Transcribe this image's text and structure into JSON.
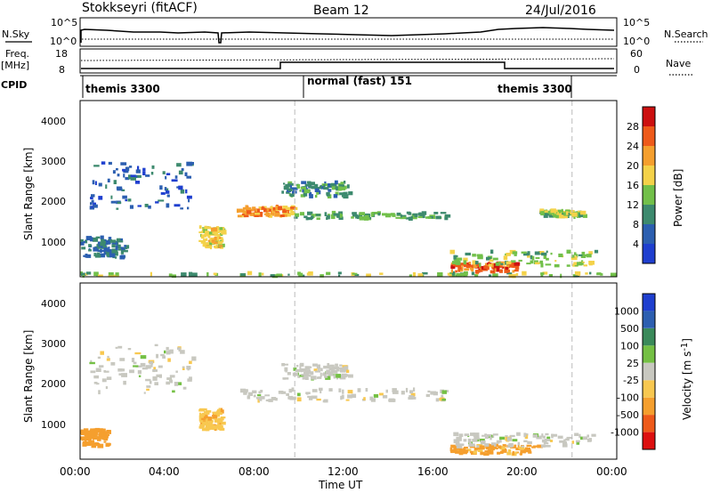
{
  "header": {
    "station": "Stokkseyri (fitACF)",
    "beam": "Beam 12",
    "date": "24/Jul/2016"
  },
  "noise_panel": {
    "left_label": "N.Sky",
    "right_label": "N.Search",
    "left_ticks": [
      "10^5",
      "10^0"
    ],
    "right_ticks": [
      "10^5",
      "10^0"
    ]
  },
  "freq_panel": {
    "left_label_1": "Freq.",
    "left_label_2": "[MHz]",
    "right_label": "Nave",
    "left_ticks": [
      "18",
      "8"
    ],
    "right_ticks": [
      "60",
      "0"
    ]
  },
  "cpid": {
    "label": "CPID",
    "segments": [
      "themis 3300",
      "normal (fast) 151",
      "themis 3300"
    ],
    "boundaries_hours": [
      0,
      9.6,
      22.0,
      24
    ]
  },
  "power_panel": {
    "ylabel": "Slant Range [km]",
    "yticks": [
      "1000",
      "2000",
      "3000",
      "4000"
    ],
    "colorbar_label": "Power [dB]",
    "colorbar_ticks": [
      "4",
      "8",
      "12",
      "16",
      "20",
      "24",
      "28"
    ],
    "colors": [
      "#1f3fcf",
      "#2c5fb0",
      "#3d8a6e",
      "#72c04a",
      "#f4d24a",
      "#f59f2e",
      "#ee5a1a",
      "#cc1010"
    ]
  },
  "velocity_panel": {
    "ylabel": "Slant Range [km]",
    "yticks": [
      "1000",
      "2000",
      "3000",
      "4000"
    ],
    "colorbar_label": "Velocity [m s",
    "colorbar_label_sup": "-1",
    "colorbar_label_end": "]",
    "colorbar_ticks": [
      "-1000",
      "-500",
      "-100",
      "-25",
      "25",
      "100",
      "500",
      "1000"
    ],
    "colors": [
      "#dd1010",
      "#ee5a1a",
      "#f59f2e",
      "#f8c850",
      "#c8c8c0",
      "#74c044",
      "#3a8a5a",
      "#2d5fb0",
      "#1f3fcf"
    ]
  },
  "xaxis": {
    "label": "Time UT",
    "ticks": [
      "00:00",
      "04:00",
      "08:00",
      "12:00",
      "16:00",
      "20:00",
      "00:00"
    ]
  },
  "chart_data": {
    "type": "heatmap",
    "title": "Stokkseyri (fitACF)",
    "xlabel": "Time UT",
    "ylabel": "Slant Range [km]",
    "xlim": [
      0,
      24
    ],
    "ylim": [
      180,
      4500
    ],
    "series": [
      {
        "name": "Power [dB]",
        "regions": [
          {
            "t": [
              0.0,
              24.0
            ],
            "r": [
              190,
              270
            ],
            "value": 14
          },
          {
            "t": [
              16.5,
              19.5
            ],
            "r": [
              300,
              520
            ],
            "value": 26
          },
          {
            "t": [
              16.5,
              23.0
            ],
            "r": [
              450,
              800
            ],
            "value": 14
          },
          {
            "t": [
              7.0,
              9.5
            ],
            "r": [
              1650,
              1900
            ],
            "value": 22
          },
          {
            "t": [
              9.5,
              16.5
            ],
            "r": [
              1600,
              1750
            ],
            "value": 12
          },
          {
            "t": [
              9.0,
              12.0
            ],
            "r": [
              2150,
              2500
            ],
            "value": 10
          },
          {
            "t": [
              0.3,
              5.0
            ],
            "r": [
              1800,
              3000
            ],
            "value": 6
          },
          {
            "t": [
              0.0,
              2.0
            ],
            "r": [
              650,
              1150
            ],
            "value": 8
          },
          {
            "t": [
              5.3,
              6.3
            ],
            "r": [
              900,
              1400
            ],
            "value": 18
          },
          {
            "t": [
              20.5,
              22.5
            ],
            "r": [
              1650,
              1800
            ],
            "value": 14
          }
        ]
      },
      {
        "name": "Velocity [m s-1]",
        "regions": [
          {
            "t": [
              16.5,
              20.5
            ],
            "r": [
              300,
              520
            ],
            "value": -120
          },
          {
            "t": [
              16.5,
              23.0
            ],
            "r": [
              480,
              800
            ],
            "value": 0
          },
          {
            "t": [
              7.0,
              16.5
            ],
            "r": [
              1600,
              1900
            ],
            "value": 0
          },
          {
            "t": [
              9.0,
              12.0
            ],
            "r": [
              2150,
              2500
            ],
            "value": 0
          },
          {
            "t": [
              0.3,
              5.0
            ],
            "r": [
              1800,
              3000
            ],
            "value": 0
          },
          {
            "t": [
              5.3,
              6.3
            ],
            "r": [
              900,
              1400
            ],
            "value": -80
          },
          {
            "t": [
              0.0,
              1.2
            ],
            "r": [
              500,
              900
            ],
            "value": -300
          }
        ]
      }
    ]
  }
}
